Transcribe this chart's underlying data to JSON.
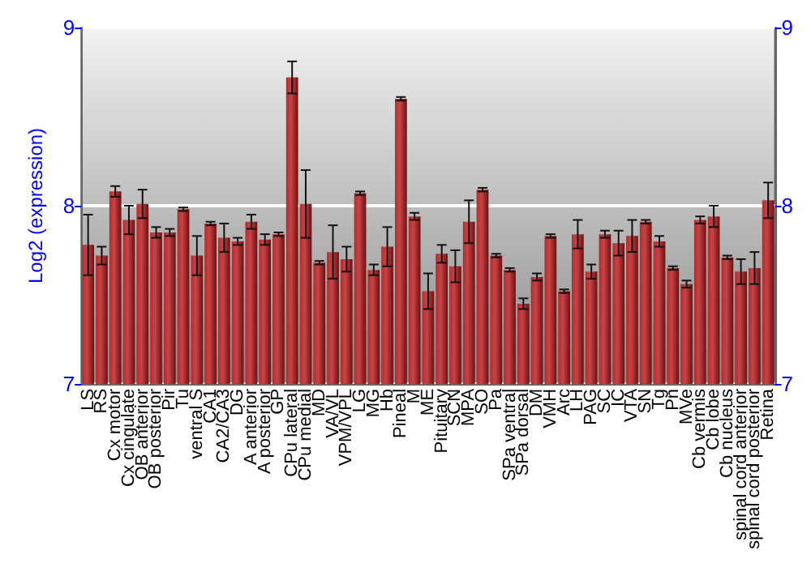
{
  "chart_data": {
    "type": "bar",
    "ylabel": "Log2 (expression)",
    "categories": [
      "LS",
      "RS",
      "Cx motor",
      "Cx cingulate",
      "OB anterior",
      "OB posterior",
      "Pir",
      "Tu",
      "ventral S",
      "CA1",
      "CA2/CA3",
      "DG",
      "A anterior",
      "A posterior",
      "GP",
      "CPu lateral",
      "CPu medial",
      "MD",
      "VA/VL",
      "VPM/VPL",
      "LG",
      "MG",
      "Hb",
      "Pineal",
      "M",
      "ME",
      "Pituitary",
      "SCN",
      "MPA",
      "SO",
      "Pa",
      "SPa ventral",
      "SPa dorsal",
      "DM",
      "VMH",
      "Arc",
      "LH",
      "PAG",
      "SC",
      "IC",
      "VTA",
      "SN",
      "Tg",
      "Pn",
      "MVe",
      "Cb vermis",
      "Cb lobe",
      "Cb nucleus",
      "spinal cord anterior",
      "spinal cord posterior",
      "Retina"
    ],
    "values": [
      7.78,
      7.72,
      8.08,
      7.92,
      8.01,
      7.85,
      7.85,
      7.98,
      7.72,
      7.9,
      7.82,
      7.8,
      7.91,
      7.81,
      7.84,
      8.72,
      8.01,
      7.68,
      7.74,
      7.7,
      8.07,
      7.64,
      7.77,
      8.6,
      7.94,
      7.52,
      7.73,
      7.66,
      7.91,
      8.09,
      7.72,
      7.64,
      7.45,
      7.6,
      7.83,
      7.52,
      7.84,
      7.63,
      7.84,
      7.79,
      7.83,
      7.91,
      7.8,
      7.65,
      7.56,
      7.92,
      7.94,
      7.71,
      7.63,
      7.65,
      8.03
    ],
    "errors": [
      0.17,
      0.05,
      0.03,
      0.08,
      0.08,
      0.03,
      0.02,
      0.01,
      0.11,
      0.01,
      0.08,
      0.02,
      0.04,
      0.03,
      0.01,
      0.09,
      0.19,
      0.01,
      0.15,
      0.07,
      0.01,
      0.03,
      0.11,
      0.01,
      0.02,
      0.1,
      0.05,
      0.09,
      0.12,
      0.01,
      0.01,
      0.01,
      0.03,
      0.02,
      0.01,
      0.01,
      0.08,
      0.04,
      0.02,
      0.07,
      0.09,
      0.01,
      0.03,
      0.01,
      0.02,
      0.02,
      0.06,
      0.01,
      0.07,
      0.09,
      0.1
    ],
    "color": "#b22c2c",
    "ylim": [
      7,
      9
    ],
    "yticks": [
      7,
      8,
      9
    ],
    "y2lim": [
      7,
      9
    ],
    "y2ticks": [
      7,
      8,
      9
    ],
    "grid": "y"
  }
}
